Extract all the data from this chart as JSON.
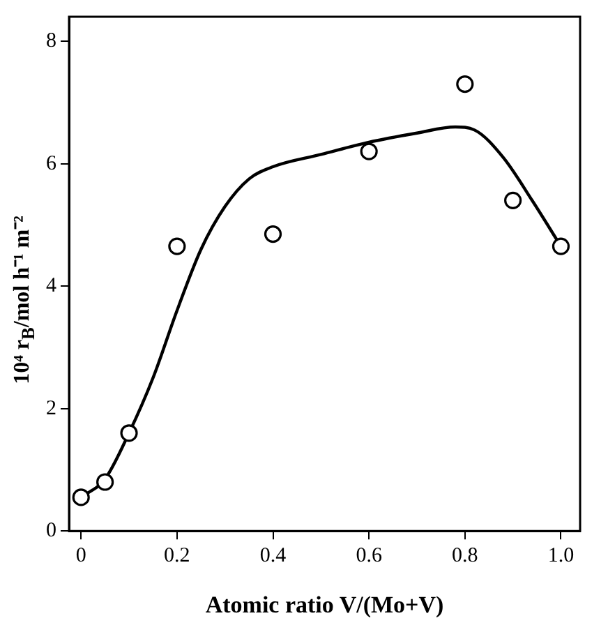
{
  "chart_data": {
    "type": "scatter",
    "xlabel": "Atomic ratio V/(Mo+V)",
    "ylabel": "10⁴ r$_{B}$/mol h⁻¹ m⁻²",
    "xlim": [
      -0.025,
      1.04
    ],
    "ylim": [
      0,
      8.4
    ],
    "xticks": [
      0,
      0.2,
      0.4,
      0.6,
      0.8,
      {
        "value": 1,
        "label": "1.0"
      }
    ],
    "yticks": [
      0,
      2,
      4,
      6,
      8
    ],
    "series": [
      {
        "type": "scatter",
        "marker": "circle",
        "color": "#000000",
        "x": [
          0,
          0.05,
          0.1,
          0.2,
          0.4,
          0.6,
          0.8,
          0.9,
          1.0
        ],
        "values": [
          0.55,
          0.8,
          1.6,
          4.65,
          4.85,
          6.2,
          7.3,
          5.4,
          4.65
        ]
      },
      {
        "type": "line",
        "marker": "none",
        "color": "#000000",
        "x": [
          0,
          0.05,
          0.1,
          0.15,
          0.2,
          0.25,
          0.3,
          0.35,
          0.4,
          0.5,
          0.6,
          0.7,
          0.78,
          0.82,
          0.88,
          0.94,
          1.0
        ],
        "values": [
          0.55,
          0.85,
          1.6,
          2.5,
          3.6,
          4.6,
          5.3,
          5.75,
          5.95,
          6.15,
          6.35,
          6.5,
          6.6,
          6.55,
          6.1,
          5.4,
          4.65
        ]
      }
    ]
  }
}
